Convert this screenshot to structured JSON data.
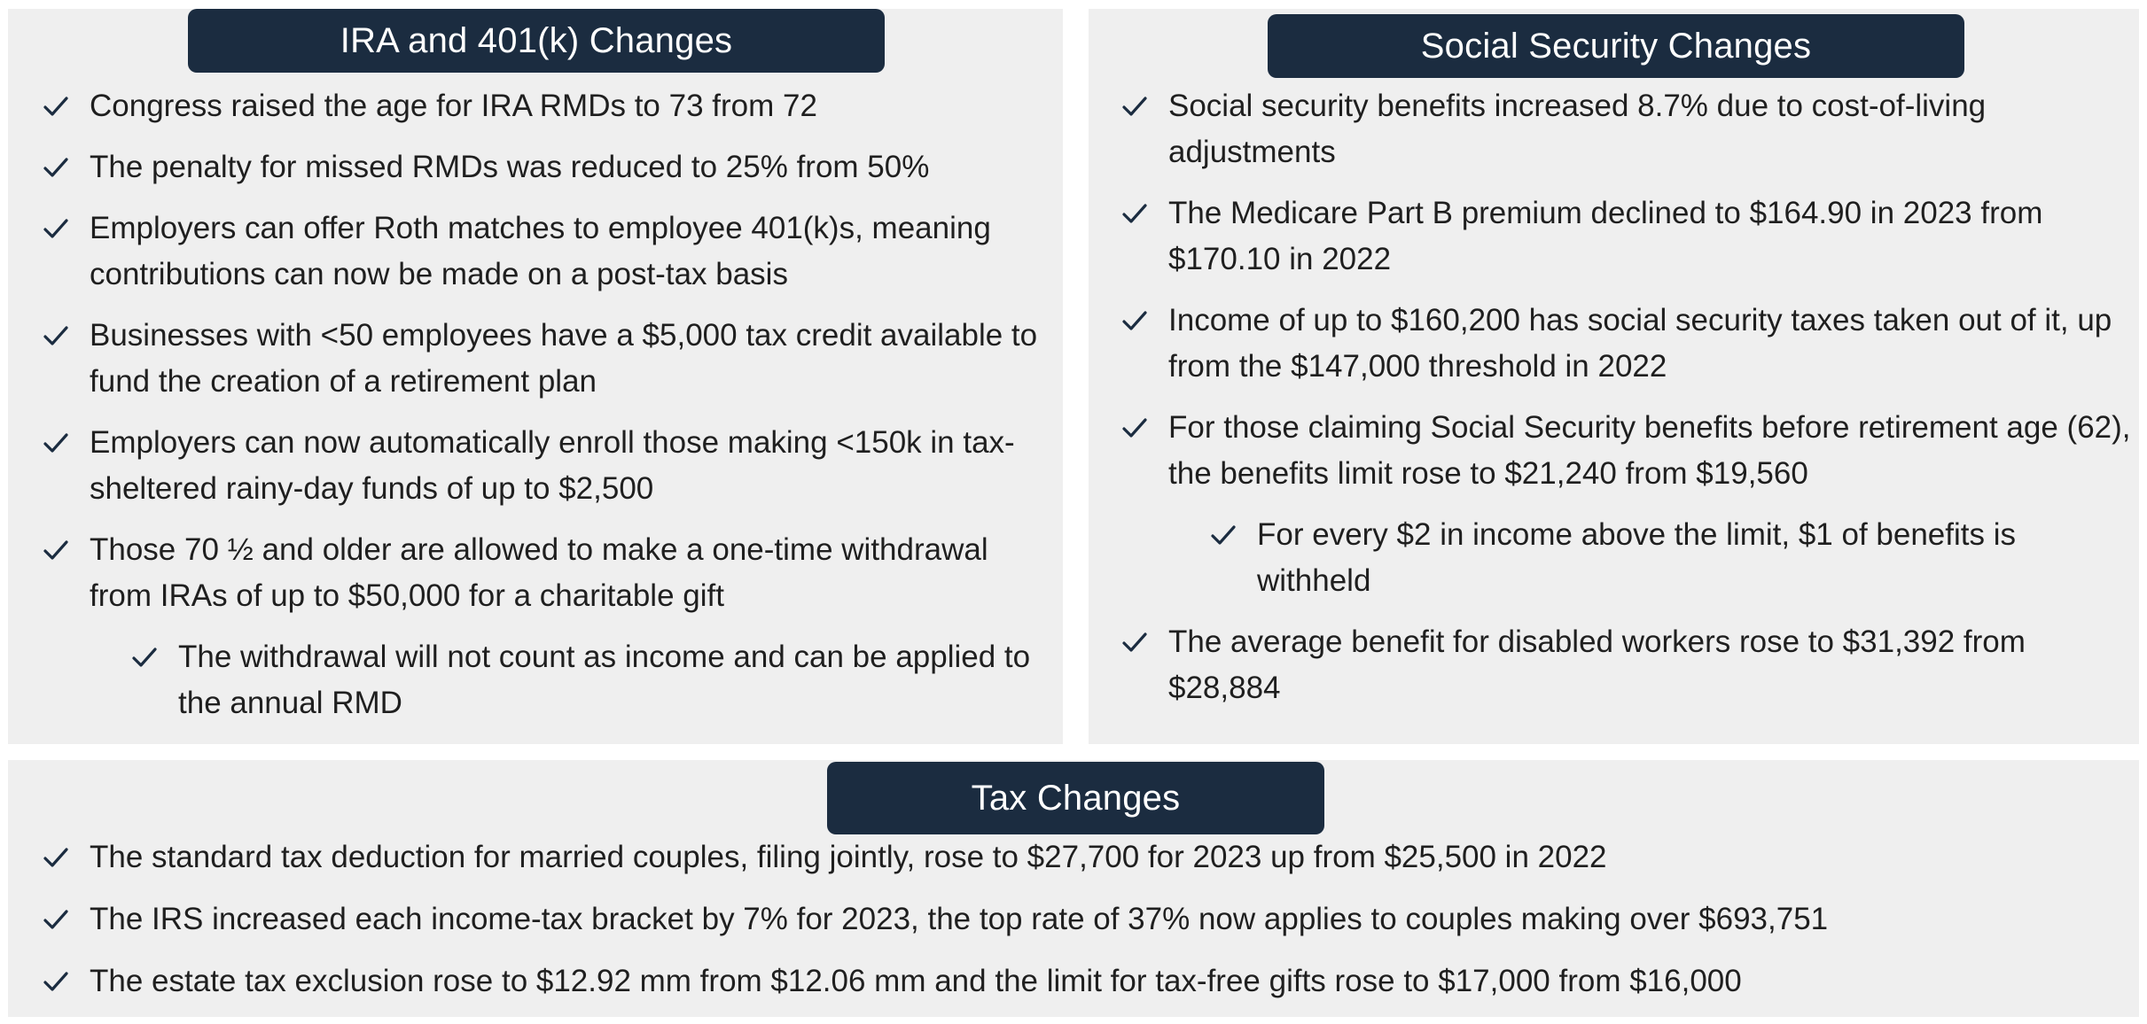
{
  "ira": {
    "title": "IRA and 401(k) Changes",
    "items": [
      {
        "text": "Congress raised the age for IRA RMDs to 73 from 72",
        "level": 1
      },
      {
        "text": "The penalty for missed RMDs was reduced to 25% from 50%",
        "level": 1
      },
      {
        "text": "Employers can offer Roth matches to employee 401(k)s, meaning contributions can now be made on a post-tax basis",
        "level": 1
      },
      {
        "text": "Businesses with <50 employees have a $5,000 tax credit available to fund the creation of a retirement plan",
        "level": 1
      },
      {
        "text": "Employers can now automatically enroll those making <150k in tax-sheltered rainy-day funds of up to $2,500",
        "level": 1
      },
      {
        "text": "Those 70 ½ and older are allowed to make a one-time withdrawal from IRAs of up to $50,000 for a charitable gift",
        "level": 1
      },
      {
        "text": "The withdrawal will not count as income and can be applied to the annual RMD",
        "level": 2
      }
    ]
  },
  "social_security": {
    "title": "Social Security Changes",
    "items": [
      {
        "text": "Social security benefits increased 8.7% due to cost-of-living adjustments",
        "level": 1
      },
      {
        "text": "The Medicare Part B premium declined to $164.90 in 2023 from $170.10 in 2022",
        "level": 1
      },
      {
        "text": "Income of up to $160,200 has social security taxes taken out of it, up from the $147,000 threshold in 2022",
        "level": 1
      },
      {
        "text": "For those claiming Social Security benefits before retirement age (62), the benefits limit rose to $21,240 from $19,560",
        "level": 1
      },
      {
        "text": "For every $2 in income above the limit, $1 of benefits is withheld",
        "level": 2
      },
      {
        "text": "The average benefit for disabled workers rose to $31,392 from $28,884",
        "level": 1
      }
    ]
  },
  "tax": {
    "title": "Tax Changes",
    "items": [
      {
        "text": "The standard tax deduction for married couples, filing jointly, rose to $27,700 for 2023 up from $25,500 in 2022",
        "level": 1
      },
      {
        "text": "The IRS increased each income-tax bracket by 7% for 2023, the top rate of 37% now applies to couples making over $693,751",
        "level": 1
      },
      {
        "text": "The estate tax exclusion rose to $12.92 mm from $12.06 mm and the limit for tax-free gifts rose to $17,000 from $16,000",
        "level": 1
      }
    ]
  },
  "colors": {
    "header_bg": "#1b2c40",
    "panel_bg": "#efefef",
    "check": "#1b2c40",
    "text": "#1f1f1f"
  },
  "icons": {
    "bullet": "checkmark-icon"
  }
}
